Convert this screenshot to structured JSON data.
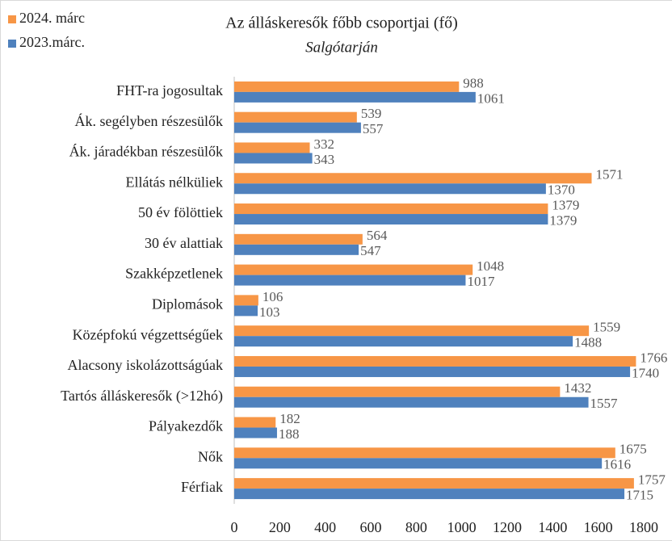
{
  "chart_data": {
    "type": "bar",
    "orientation": "horizontal",
    "title": "Az álláskeresők főbb csoportjai (fő)",
    "subtitle": "Salgótarján",
    "categories": [
      "FHT-ra jogosultak",
      "Ák. segélyben részesülők",
      "Ák. járadékban részesülők",
      "Ellátás nélküliek",
      "50 év fölöttiek",
      "30 év alattiak",
      "Szakképzetlenek",
      "Diplomások",
      "Középfokú végzettségűek",
      "Alacsony iskolázottságúak",
      "Tartós álláskeresők (>12hó)",
      "Pályakezdők",
      "Nők",
      "Férfiak"
    ],
    "series": [
      {
        "name": "2024. márc",
        "color": "#f79646",
        "values": [
          988,
          539,
          332,
          1571,
          1379,
          564,
          1048,
          106,
          1559,
          1766,
          1432,
          182,
          1675,
          1757
        ]
      },
      {
        "name": "2023.márc.",
        "color": "#4f81bd",
        "values": [
          1061,
          557,
          343,
          1370,
          1379,
          547,
          1017,
          103,
          1488,
          1740,
          1557,
          188,
          1616,
          1715
        ]
      }
    ],
    "xlim": [
      0,
      1800
    ],
    "xticks": [
      0,
      200,
      400,
      600,
      800,
      1000,
      1200,
      1400,
      1600,
      1800
    ],
    "grid": false,
    "legend": "top-left"
  }
}
